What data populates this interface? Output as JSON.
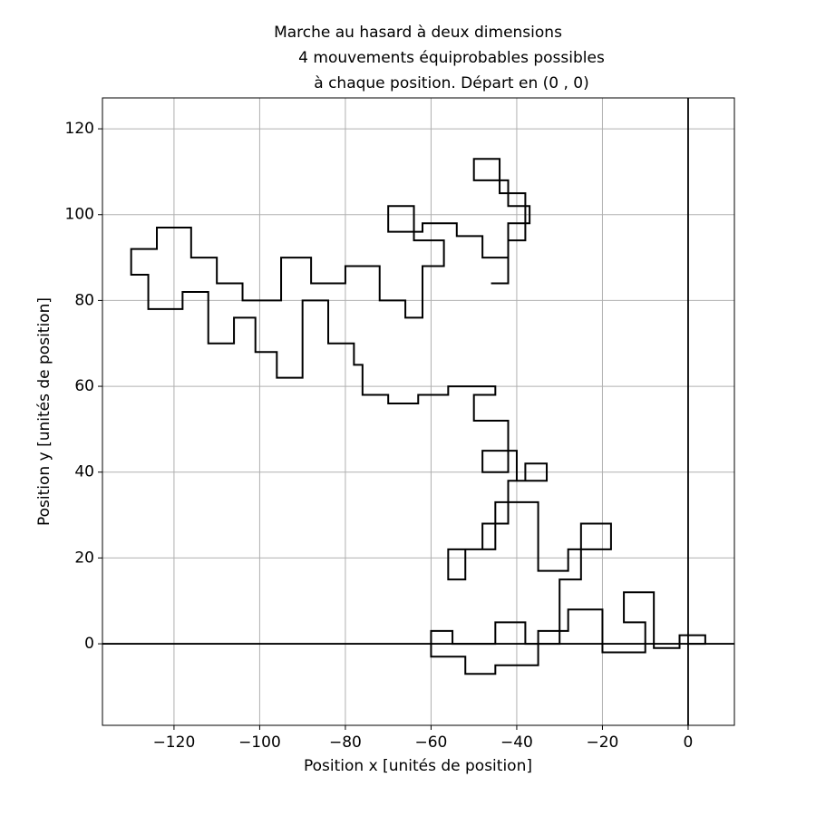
{
  "chart_data": {
    "type": "line",
    "title_lines": [
      "Marche au hasard à deux dimensions",
      "4 mouvements équiprobables possibles",
      "à chaque position. Départ en (0 , 0)"
    ],
    "x_label": "Position x [unités de position]",
    "y_label": "Position y [unités de position]",
    "xlim": [
      -136.7,
      10.8
    ],
    "ylim": [
      -19,
      127.2
    ],
    "xticks": [
      {
        "value": -120,
        "label": "−120"
      },
      {
        "value": -100,
        "label": "−100"
      },
      {
        "value": -80,
        "label": "−80"
      },
      {
        "value": -60,
        "label": "−60"
      },
      {
        "value": -40,
        "label": "−40"
      },
      {
        "value": -20,
        "label": "−20"
      },
      0
    ],
    "yticks": [
      0,
      20,
      40,
      60,
      80,
      100,
      120
    ],
    "grid": true,
    "zero_lines": true,
    "color": "#000000",
    "x": [
      0,
      4,
      4,
      -2,
      -2,
      -8,
      -8,
      -15,
      -15,
      -10,
      -10,
      -20,
      -20,
      -28,
      -28,
      -35,
      -35,
      -45,
      -45,
      -52,
      -52,
      -60,
      -60,
      -55,
      -55,
      -45,
      -45,
      -38,
      -38,
      -30,
      -30,
      -25,
      -25,
      -18,
      -18,
      -28,
      -28,
      -35,
      -35,
      -45,
      -45,
      -52,
      -52,
      -56,
      -56,
      -48,
      -48,
      -42,
      -42,
      -38,
      -38,
      -33,
      -33,
      -40,
      -40,
      -48,
      -48,
      -42,
      -42,
      -50,
      -50,
      -45,
      -45,
      -56,
      -56,
      -63,
      -63,
      -70,
      -70,
      -76,
      -76,
      -78,
      -78,
      -84,
      -84,
      -90,
      -90,
      -96,
      -96,
      -101,
      -101,
      -106,
      -106,
      -112,
      -112,
      -118,
      -118,
      -126,
      -126,
      -130,
      -130,
      -124,
      -124,
      -116,
      -116,
      -110,
      -110,
      -104,
      -104,
      -95,
      -95,
      -88,
      -88,
      -80,
      -80,
      -72,
      -72,
      -66,
      -66,
      -62,
      -62,
      -57,
      -57,
      -64,
      -64,
      -70,
      -70,
      -62,
      -62,
      -54,
      -54,
      -48,
      -48,
      -42,
      -42,
      -37,
      -37,
      -42,
      -42,
      -50,
      -50,
      -44,
      -44,
      -38,
      -38,
      -42,
      -42,
      -46
    ],
    "y": [
      0,
      0,
      2,
      2,
      -1,
      -1,
      12,
      12,
      5,
      5,
      -2,
      -2,
      8,
      8,
      3,
      3,
      -5,
      -5,
      -7,
      -7,
      -3,
      -3,
      3,
      3,
      0,
      0,
      5,
      5,
      0,
      0,
      15,
      15,
      28,
      28,
      22,
      22,
      17,
      17,
      33,
      33,
      22,
      22,
      15,
      15,
      22,
      22,
      28,
      28,
      38,
      38,
      42,
      42,
      38,
      38,
      45,
      45,
      40,
      40,
      52,
      52,
      58,
      58,
      60,
      60,
      58,
      58,
      56,
      56,
      58,
      58,
      65,
      65,
      70,
      70,
      80,
      80,
      62,
      62,
      68,
      68,
      76,
      76,
      70,
      70,
      82,
      82,
      78,
      78,
      86,
      86,
      92,
      92,
      97,
      97,
      90,
      90,
      84,
      84,
      80,
      80,
      90,
      90,
      84,
      84,
      88,
      88,
      80,
      80,
      76,
      76,
      88,
      88,
      94,
      94,
      102,
      102,
      96,
      96,
      98,
      98,
      95,
      95,
      90,
      90,
      98,
      98,
      102,
      102,
      108,
      108,
      113,
      113,
      105,
      105,
      94,
      94,
      84,
      84
    ]
  }
}
